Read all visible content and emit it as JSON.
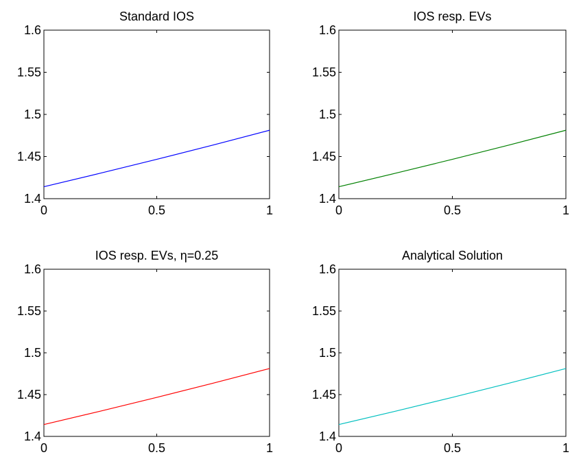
{
  "chart_data": [
    {
      "type": "line",
      "title": "Standard IOS",
      "xlabel": "",
      "ylabel": "",
      "xlim": [
        0,
        1
      ],
      "ylim": [
        1.4,
        1.6
      ],
      "xticks": [
        0,
        0.5,
        1
      ],
      "xtick_labels": [
        "0",
        "0.5",
        "1"
      ],
      "yticks": [
        1.4,
        1.45,
        1.5,
        1.55,
        1.6
      ],
      "ytick_labels": [
        "1.4",
        "1.45",
        "1.5",
        "1.55",
        "1.6"
      ],
      "grid": false,
      "series": [
        {
          "color": "#0000ff",
          "x": [
            0,
            0.25,
            0.5,
            0.75,
            1
          ],
          "y": [
            1.4142,
            1.4302,
            1.4467,
            1.4637,
            1.4812
          ]
        }
      ]
    },
    {
      "type": "line",
      "title": "IOS resp. EVs",
      "xlabel": "",
      "ylabel": "",
      "xlim": [
        0,
        1
      ],
      "ylim": [
        1.4,
        1.6
      ],
      "xticks": [
        0,
        0.5,
        1
      ],
      "xtick_labels": [
        "0",
        "0.5",
        "1"
      ],
      "yticks": [
        1.4,
        1.45,
        1.5,
        1.55,
        1.6
      ],
      "ytick_labels": [
        "1.4",
        "1.45",
        "1.5",
        "1.55",
        "1.6"
      ],
      "grid": false,
      "series": [
        {
          "color": "#008000",
          "x": [
            0,
            0.25,
            0.5,
            0.75,
            1
          ],
          "y": [
            1.4142,
            1.4302,
            1.4467,
            1.4637,
            1.4812
          ]
        }
      ]
    },
    {
      "type": "line",
      "title": "IOS resp. EVs, η=0.25",
      "xlabel": "",
      "ylabel": "",
      "xlim": [
        0,
        1
      ],
      "ylim": [
        1.4,
        1.6
      ],
      "xticks": [
        0,
        0.5,
        1
      ],
      "xtick_labels": [
        "0",
        "0.5",
        "1"
      ],
      "yticks": [
        1.4,
        1.45,
        1.5,
        1.55,
        1.6
      ],
      "ytick_labels": [
        "1.4",
        "1.45",
        "1.5",
        "1.55",
        "1.6"
      ],
      "grid": false,
      "series": [
        {
          "color": "#ff0000",
          "x": [
            0,
            0.25,
            0.5,
            0.75,
            1
          ],
          "y": [
            1.4142,
            1.4302,
            1.4467,
            1.4637,
            1.4812
          ]
        }
      ]
    },
    {
      "type": "line",
      "title": "Analytical Solution",
      "xlabel": "",
      "ylabel": "",
      "xlim": [
        0,
        1
      ],
      "ylim": [
        1.4,
        1.6
      ],
      "xticks": [
        0,
        0.5,
        1
      ],
      "xtick_labels": [
        "0",
        "0.5",
        "1"
      ],
      "yticks": [
        1.4,
        1.45,
        1.5,
        1.55,
        1.6
      ],
      "ytick_labels": [
        "1.4",
        "1.45",
        "1.5",
        "1.55",
        "1.6"
      ],
      "grid": false,
      "series": [
        {
          "color": "#00bfbf",
          "x": [
            0,
            0.25,
            0.5,
            0.75,
            1
          ],
          "y": [
            1.4142,
            1.4302,
            1.4467,
            1.4637,
            1.4812
          ]
        }
      ]
    }
  ]
}
